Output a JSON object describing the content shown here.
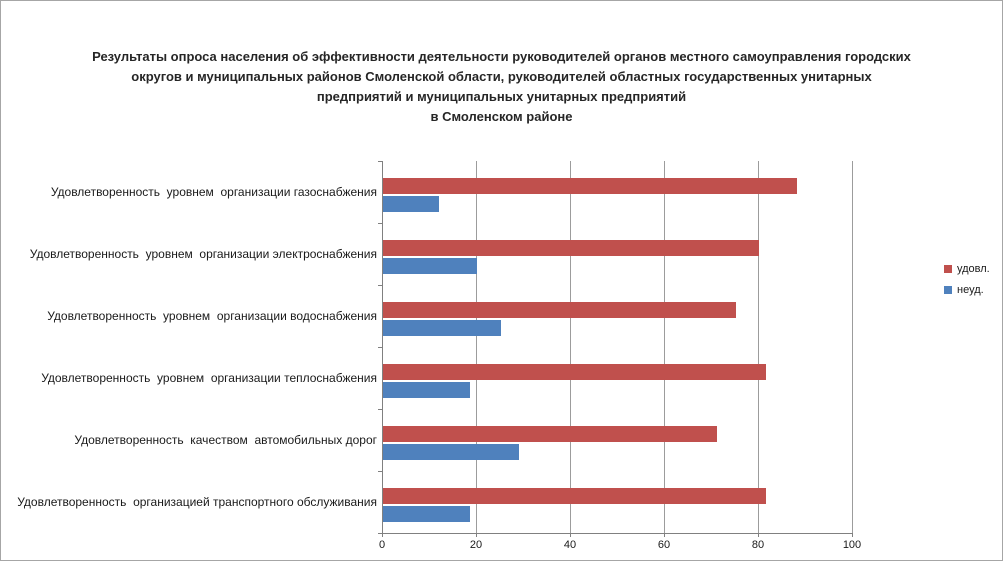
{
  "colors": {
    "series_satisfied": "#C0504D",
    "series_unsatisfied": "#4F81BD",
    "gridline": "#9C9C9C",
    "axis": "#808080",
    "frame_border": "#A6A6A6",
    "text": "#1A1A1A"
  },
  "chart_data": {
    "type": "bar",
    "orientation": "horizontal",
    "title": "Результаты опроса населения об эффективности деятельности руководителей органов местного самоуправления городских округов и муниципальных районов Смоленской области, руководителей областных государственных унитарных предприятий и муниципальных унитарных предприятий в Смоленском районе",
    "title_lines": [
      "Результаты опроса населения об эффективности деятельности руководителей органов местного самоуправления городских",
      "округов и муниципальных районов Смоленской области, руководителей областных государственных унитарных",
      "предприятий и муниципальных унитарных предприятий",
      "в Смоленском районе"
    ],
    "categories": [
      "Удовлетворенность  уровнем  организации газоснабжения",
      "Удовлетворенность  уровнем  организации электроснабжения",
      "Удовлетворенность  уровнем  организации водоснабжения",
      "Удовлетворенность  уровнем  организации теплоснабжения",
      "Удовлетворенность  качеством  автомобильных дорог",
      "Удовлетворенность  организацией транспортного обслуживания"
    ],
    "series": [
      {
        "name": "удовл.",
        "color": "#C0504D",
        "values": [
          88,
          80,
          75,
          81.5,
          71,
          81.5
        ]
      },
      {
        "name": "неуд.",
        "color": "#4F81BD",
        "values": [
          12,
          20,
          25,
          18.5,
          29,
          18.5
        ]
      }
    ],
    "xlim": [
      0,
      100
    ],
    "x_ticks": [
      0,
      20,
      40,
      60,
      80,
      100
    ],
    "grid": true,
    "legend_position": "right"
  }
}
